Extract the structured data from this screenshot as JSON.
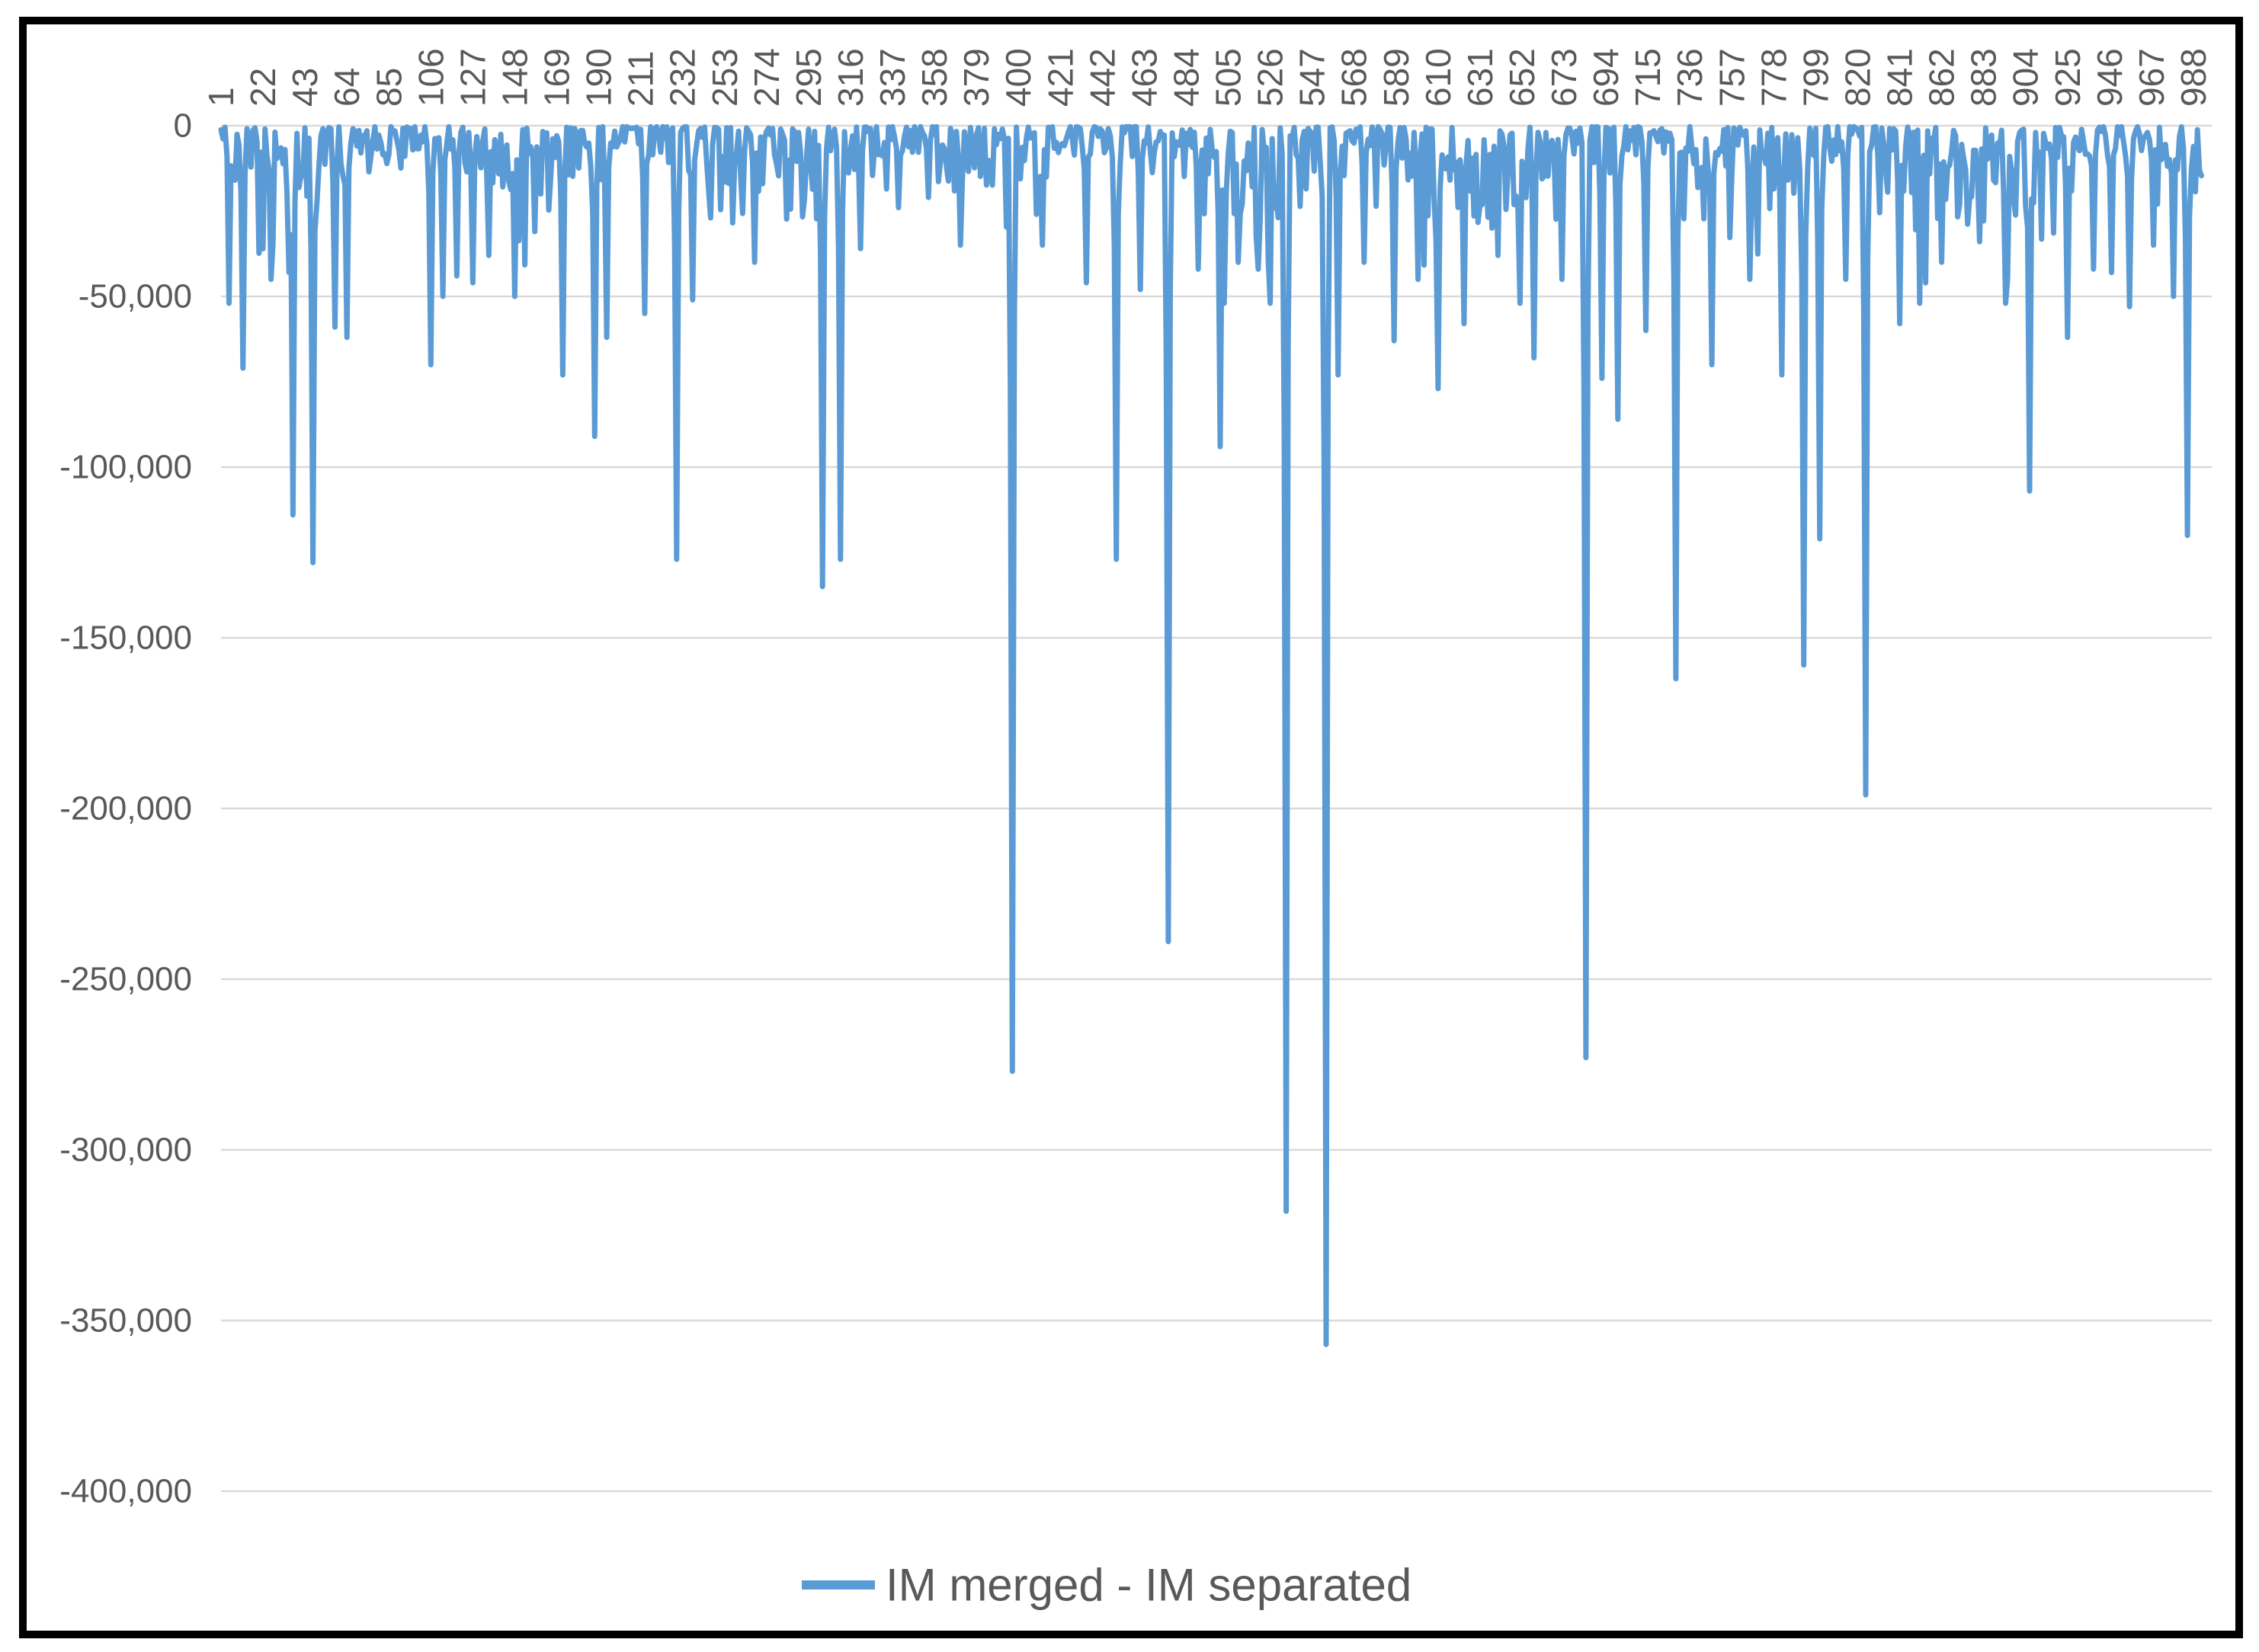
{
  "chart_data": {
    "type": "line",
    "title": "",
    "legend": {
      "position": "bottom",
      "entries": [
        {
          "label": "IM merged - IM separated",
          "color": "#5B9BD5"
        }
      ]
    },
    "x_axis": {
      "position": "top",
      "points_count": 992,
      "tick_start": 1,
      "tick_step": 21,
      "tick_labels": [
        "1",
        "22",
        "43",
        "64",
        "85",
        "106",
        "127",
        "148",
        "169",
        "190",
        "211",
        "232",
        "253",
        "274",
        "295",
        "316",
        "337",
        "358",
        "379",
        "400",
        "421",
        "442",
        "463",
        "484",
        "505",
        "526",
        "547",
        "568",
        "589",
        "610",
        "631",
        "652",
        "673",
        "694",
        "715",
        "736",
        "757",
        "778",
        "799",
        "820",
        "841",
        "862",
        "883",
        "904",
        "925",
        "946",
        "967",
        "988"
      ]
    },
    "y_axis": {
      "max": 0,
      "min": -400000,
      "tick_interval": 50000,
      "tick_labels": [
        "0",
        "-50,000",
        "-100,000",
        "-150,000",
        "-200,000",
        "-250,000",
        "-300,000",
        "-350,000",
        "-400,000"
      ]
    },
    "grid": true,
    "series": [
      {
        "name": "IM merged - IM separated",
        "color": "#5B9BD5",
        "baseline_noise_range": [
          -500,
          -52000
        ],
        "major_dips": [
          [
            12,
            -71000
          ],
          [
            26,
            -45000
          ],
          [
            37,
            -114000
          ],
          [
            47,
            -128000
          ],
          [
            58,
            -59000
          ],
          [
            64,
            -62000
          ],
          [
            106,
            -70000
          ],
          [
            112,
            -50000
          ],
          [
            119,
            -44000
          ],
          [
            127,
            -46000
          ],
          [
            135,
            -38000
          ],
          [
            148,
            -50000
          ],
          [
            158,
            -31000
          ],
          [
            172,
            -73000
          ],
          [
            188,
            -91000
          ],
          [
            194,
            -62000
          ],
          [
            213,
            -55000
          ],
          [
            229,
            -127000
          ],
          [
            237,
            -51000
          ],
          [
            246,
            -27000
          ],
          [
            268,
            -40000
          ],
          [
            302,
            -135000
          ],
          [
            311,
            -127000
          ],
          [
            321,
            -36000
          ],
          [
            340,
            -24000
          ],
          [
            355,
            -21000
          ],
          [
            371,
            -35000
          ],
          [
            397,
            -277000
          ],
          [
            412,
            -35000
          ],
          [
            434,
            -46000
          ],
          [
            449,
            -127000
          ],
          [
            461,
            -48000
          ],
          [
            475,
            -239000
          ],
          [
            490,
            -42000
          ],
          [
            501,
            -94000
          ],
          [
            510,
            -40000
          ],
          [
            520,
            -42000
          ],
          [
            534,
            -318000
          ],
          [
            554,
            -357000
          ],
          [
            560,
            -73000
          ],
          [
            573,
            -40000
          ],
          [
            588,
            -63000
          ],
          [
            600,
            -45000
          ],
          [
            610,
            -77000
          ],
          [
            623,
            -58000
          ],
          [
            637,
            -30000
          ],
          [
            651,
            -52000
          ],
          [
            658,
            -68000
          ],
          [
            672,
            -45000
          ],
          [
            684,
            -273000
          ],
          [
            692,
            -74000
          ],
          [
            700,
            -86000
          ],
          [
            714,
            -60000
          ],
          [
            729,
            -162000
          ],
          [
            747,
            -70000
          ],
          [
            766,
            -45000
          ],
          [
            782,
            -73000
          ],
          [
            793,
            -158000
          ],
          [
            801,
            -121000
          ],
          [
            814,
            -45000
          ],
          [
            824,
            -196000
          ],
          [
            841,
            -58000
          ],
          [
            862,
            -40000
          ],
          [
            881,
            -34000
          ],
          [
            895,
            -45000
          ],
          [
            906,
            -107000
          ],
          [
            925,
            -62000
          ],
          [
            938,
            -42000
          ],
          [
            947,
            -43000
          ],
          [
            956,
            -53000
          ],
          [
            968,
            -35000
          ],
          [
            978,
            -50000
          ],
          [
            985,
            -120000
          ]
        ]
      }
    ],
    "colors": {
      "line": "#5B9BD5",
      "gridline": "#D9D9D9",
      "axis_label": "#595959",
      "frame_border": "#000000",
      "background": "#FFFFFF"
    }
  }
}
